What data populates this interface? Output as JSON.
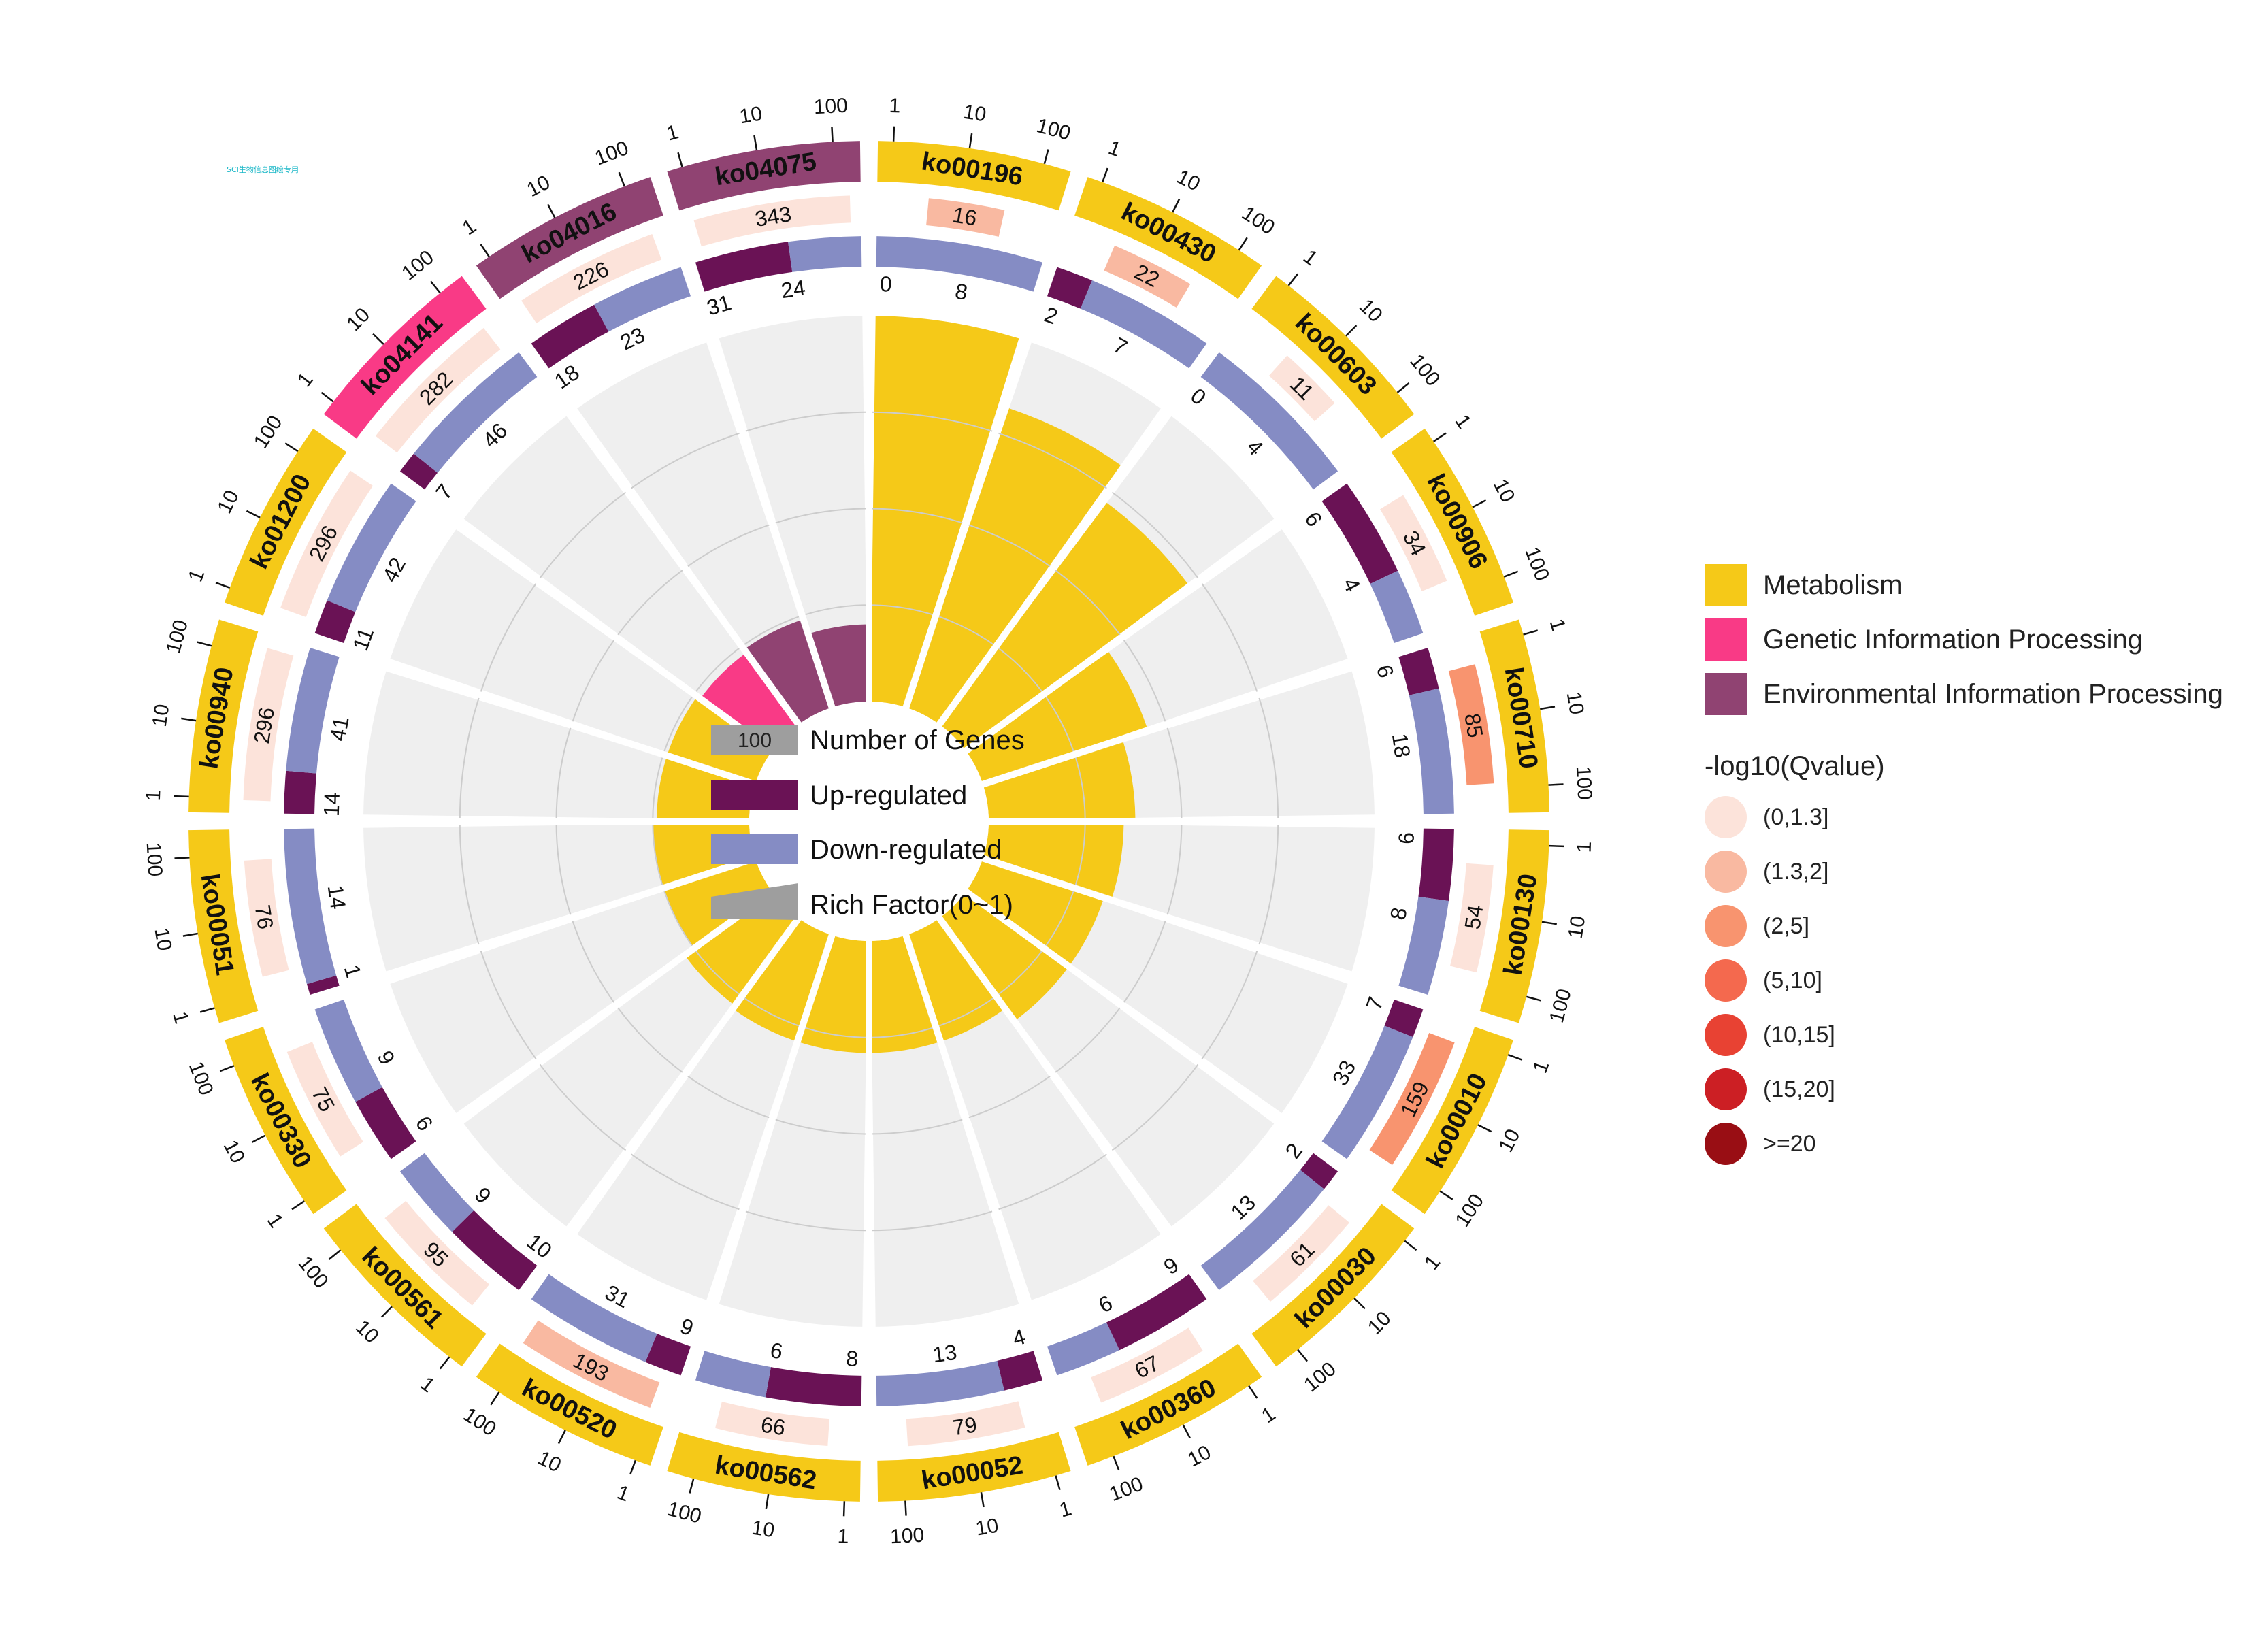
{
  "watermark": "SCI生物信息图绘专用",
  "chart_data": {
    "type": "circos",
    "title": "",
    "categories_legend": [
      {
        "name": "Metabolism",
        "color": "#F5C918"
      },
      {
        "name": "Genetic Information Processing",
        "color": "#F93A86"
      },
      {
        "name": "Environmental Information Processing",
        "color": "#904372"
      }
    ],
    "up_color": "#6A1255",
    "down_color": "#858CC4",
    "ring_scale_labels": [
      "1",
      "10",
      "100"
    ],
    "center_legend": {
      "number_of_genes_sample": "100",
      "number_of_genes": "Number of Genes",
      "up_regulated": "Up-regulated",
      "down_regulated": "Down-regulated",
      "rich_factor": "Rich Factor(0~1)"
    },
    "qvalue_legend": {
      "title": "-log10(Qvalue)",
      "items": [
        {
          "label": "(0,1.3]",
          "color": "#FCE3DA"
        },
        {
          "label": "(1.3,2]",
          "color": "#F9B9A1"
        },
        {
          "label": "(2,5]",
          "color": "#F8946F"
        },
        {
          "label": "(5,10]",
          "color": "#F4694E"
        },
        {
          "label": "(10,15]",
          "color": "#E84233"
        },
        {
          "label": "(15,20]",
          "color": "#CC1F24"
        },
        {
          "label": ">=20",
          "color": "#990E14"
        }
      ]
    },
    "pathways": [
      {
        "id": "ko00196",
        "category": "Metabolism",
        "background_genes": 16,
        "qvalue_color": "#F9B9A1",
        "up": 0,
        "down": 8,
        "rich_factor": 1.0
      },
      {
        "id": "ko00430",
        "category": "Metabolism",
        "background_genes": 22,
        "qvalue_color": "#F9B9A1",
        "up": 2,
        "down": 7,
        "rich_factor": 0.82
      },
      {
        "id": "ko00603",
        "category": "Metabolism",
        "background_genes": 11,
        "qvalue_color": "#FCE3DA",
        "up": 0,
        "down": 4,
        "rich_factor": 0.72
      },
      {
        "id": "ko00906",
        "category": "Metabolism",
        "background_genes": 34,
        "qvalue_color": "#FCE3DA",
        "up": 6,
        "down": 4,
        "rich_factor": 0.45
      },
      {
        "id": "ko00710",
        "category": "Metabolism",
        "background_genes": 85,
        "qvalue_color": "#F8946F",
        "up": 6,
        "down": 18,
        "rich_factor": 0.38
      },
      {
        "id": "ko00130",
        "category": "Metabolism",
        "background_genes": 54,
        "qvalue_color": "#FCE3DA",
        "up": 6,
        "down": 8,
        "rich_factor": 0.35
      },
      {
        "id": "ko00010",
        "category": "Metabolism",
        "background_genes": 159,
        "qvalue_color": "#F8946F",
        "up": 7,
        "down": 33,
        "rich_factor": 0.33
      },
      {
        "id": "ko00030",
        "category": "Metabolism",
        "background_genes": 61,
        "qvalue_color": "#FCE3DA",
        "up": 2,
        "down": 13,
        "rich_factor": 0.33
      },
      {
        "id": "ko00360",
        "category": "Metabolism",
        "background_genes": 67,
        "qvalue_color": "#FCE3DA",
        "up": 9,
        "down": 6,
        "rich_factor": 0.29
      },
      {
        "id": "ko00052",
        "category": "Metabolism",
        "background_genes": 79,
        "qvalue_color": "#FCE3DA",
        "up": 4,
        "down": 13,
        "rich_factor": 0.29
      },
      {
        "id": "ko00562",
        "category": "Metabolism",
        "background_genes": 66,
        "qvalue_color": "#FCE3DA",
        "up": 8,
        "down": 6,
        "rich_factor": 0.29
      },
      {
        "id": "ko00520",
        "category": "Metabolism",
        "background_genes": 193,
        "qvalue_color": "#F9B9A1",
        "up": 9,
        "down": 31,
        "rich_factor": 0.29
      },
      {
        "id": "ko00561",
        "category": "Metabolism",
        "background_genes": 95,
        "qvalue_color": "#FCE3DA",
        "up": 10,
        "down": 9,
        "rich_factor": 0.28
      },
      {
        "id": "ko00330",
        "category": "Metabolism",
        "background_genes": 75,
        "qvalue_color": "#FCE3DA",
        "up": 6,
        "down": 9,
        "rich_factor": 0.25
      },
      {
        "id": "ko00051",
        "category": "Metabolism",
        "background_genes": 76,
        "qvalue_color": "#FCE3DA",
        "up": 1,
        "down": 14,
        "rich_factor": 0.25
      },
      {
        "id": "ko00940",
        "category": "Metabolism",
        "background_genes": 296,
        "qvalue_color": "#FCE3DA",
        "up": 14,
        "down": 41,
        "rich_factor": 0.24
      },
      {
        "id": "ko01200",
        "category": "Metabolism",
        "background_genes": 296,
        "qvalue_color": "#FCE3DA",
        "up": 11,
        "down": 42,
        "rich_factor": 0.24
      },
      {
        "id": "ko04141",
        "category": "Genetic Information Processing",
        "background_genes": 282,
        "qvalue_color": "#FCE3DA",
        "up": 7,
        "down": 46,
        "rich_factor": 0.23
      },
      {
        "id": "ko04016",
        "category": "Environmental Information Processing",
        "background_genes": 226,
        "qvalue_color": "#FCE3DA",
        "up": 18,
        "down": 23,
        "rich_factor": 0.24
      },
      {
        "id": "ko04075",
        "category": "Environmental Information Processing",
        "background_genes": 343,
        "qvalue_color": "#FCE3DA",
        "up": 31,
        "down": 24,
        "rich_factor": 0.2
      }
    ]
  }
}
